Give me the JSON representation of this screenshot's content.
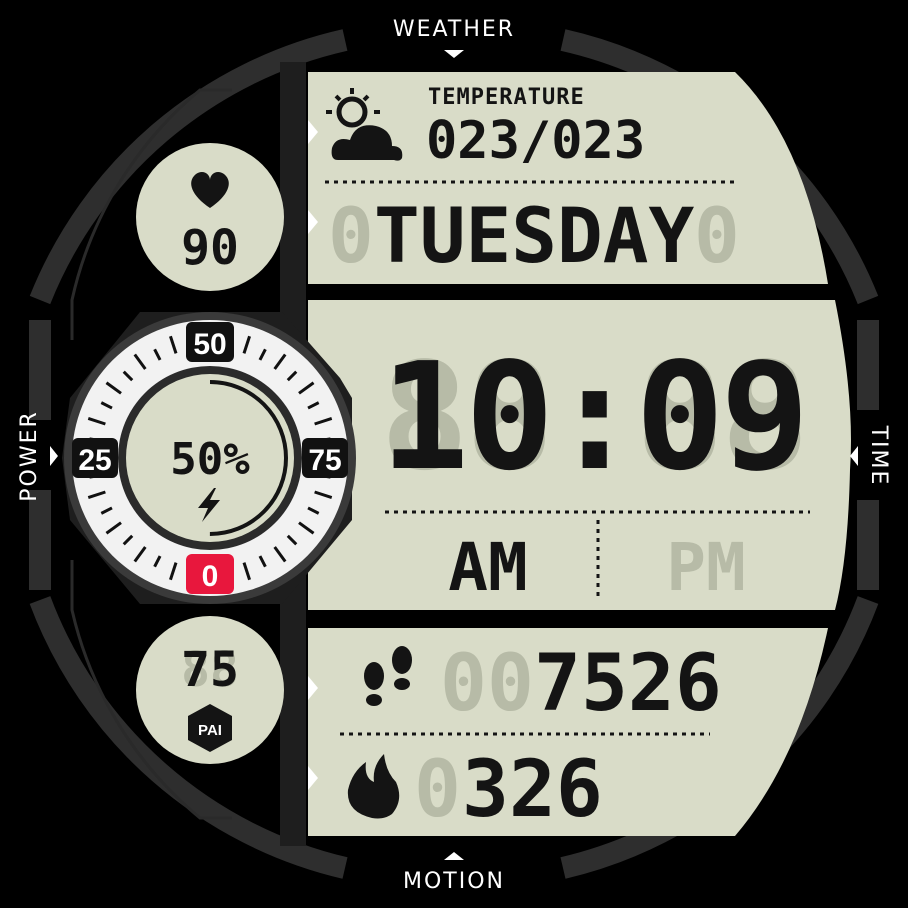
{
  "colors": {
    "background": "#000000",
    "bezel": "#2e2e2e",
    "lcd": "#d9dcc8",
    "lcd_ghost": "#b7bba7",
    "ink": "#141414",
    "dial_ring": "#f2f2f2",
    "dial_accent": "#e8173d"
  },
  "edge_labels": {
    "top": "WEATHER",
    "left": "POWER",
    "right": "TIME",
    "bottom": "MOTION"
  },
  "weather": {
    "icon": "partly-cloudy-icon",
    "label": "TEMPERATURE",
    "value": "023/023"
  },
  "day": {
    "ghost": "0TUESDAY0",
    "value": "TUESDAY"
  },
  "heart": {
    "icon": "heart-icon",
    "value": "90"
  },
  "battery": {
    "value": "50%",
    "icon": "lightning-bolt-icon",
    "level": 0.5,
    "scale": {
      "top": "50",
      "left": "25",
      "right": "75",
      "bottom": "0"
    }
  },
  "time": {
    "value": "10:09",
    "am": "AM",
    "pm": "PM",
    "am_active": true
  },
  "pai": {
    "value": "75",
    "badge": "PAI"
  },
  "steps": {
    "icon": "footprints-icon",
    "ghost": "00",
    "value": "7526"
  },
  "calories": {
    "icon": "flame-icon",
    "ghost": "0",
    "value": "326"
  }
}
